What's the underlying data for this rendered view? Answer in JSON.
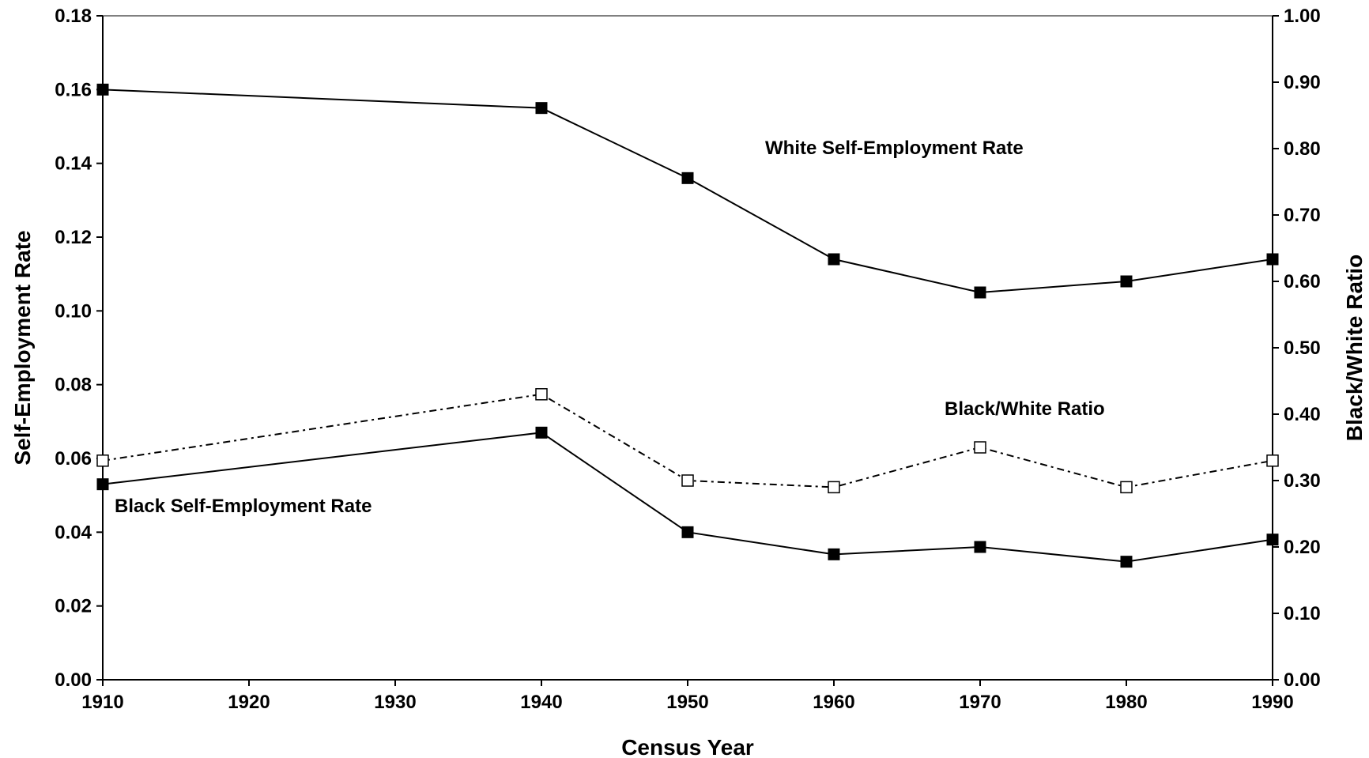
{
  "chart_data": {
    "type": "line",
    "xlabel": "Census Year",
    "ylabel": "Self-Employment Rate",
    "y2label": "Black/White Ratio",
    "xlim": [
      1910,
      1990
    ],
    "xticks": [
      "1910",
      "1920",
      "1930",
      "1940",
      "1950",
      "1960",
      "1970",
      "1980",
      "1990"
    ],
    "ylim": [
      0,
      0.18
    ],
    "yticks": [
      "0.00",
      "0.02",
      "0.04",
      "0.06",
      "0.08",
      "0.10",
      "0.12",
      "0.14",
      "0.16",
      "0.18"
    ],
    "y2lim": [
      0,
      1.0
    ],
    "y2ticks": [
      "0.00",
      "0.10",
      "0.20",
      "0.30",
      "0.40",
      "0.50",
      "0.60",
      "0.70",
      "0.80",
      "0.90",
      "1.00"
    ],
    "grid": false,
    "series": [
      {
        "name": "White Self-Employment Rate",
        "axis": "left",
        "line_style": "solid",
        "marker": "filled-square",
        "x": [
          1910,
          1940,
          1950,
          1960,
          1970,
          1980,
          1990
        ],
        "values": [
          0.16,
          0.155,
          0.136,
          0.114,
          0.105,
          0.108,
          0.114
        ]
      },
      {
        "name": "Black Self-Employment Rate",
        "axis": "left",
        "line_style": "solid",
        "marker": "filled-square",
        "x": [
          1910,
          1940,
          1950,
          1960,
          1970,
          1980,
          1990
        ],
        "values": [
          0.053,
          0.067,
          0.04,
          0.034,
          0.036,
          0.032,
          0.038
        ]
      },
      {
        "name": "Black/White Ratio",
        "axis": "right",
        "line_style": "dashed",
        "marker": "open-square",
        "x": [
          1910,
          1940,
          1950,
          1960,
          1970,
          1980,
          1990
        ],
        "values": [
          0.33,
          0.43,
          0.3,
          0.29,
          0.35,
          0.29,
          0.33
        ]
      }
    ],
    "colors": {
      "line": "#000000",
      "open_marker_fill": "#ffffff"
    }
  }
}
